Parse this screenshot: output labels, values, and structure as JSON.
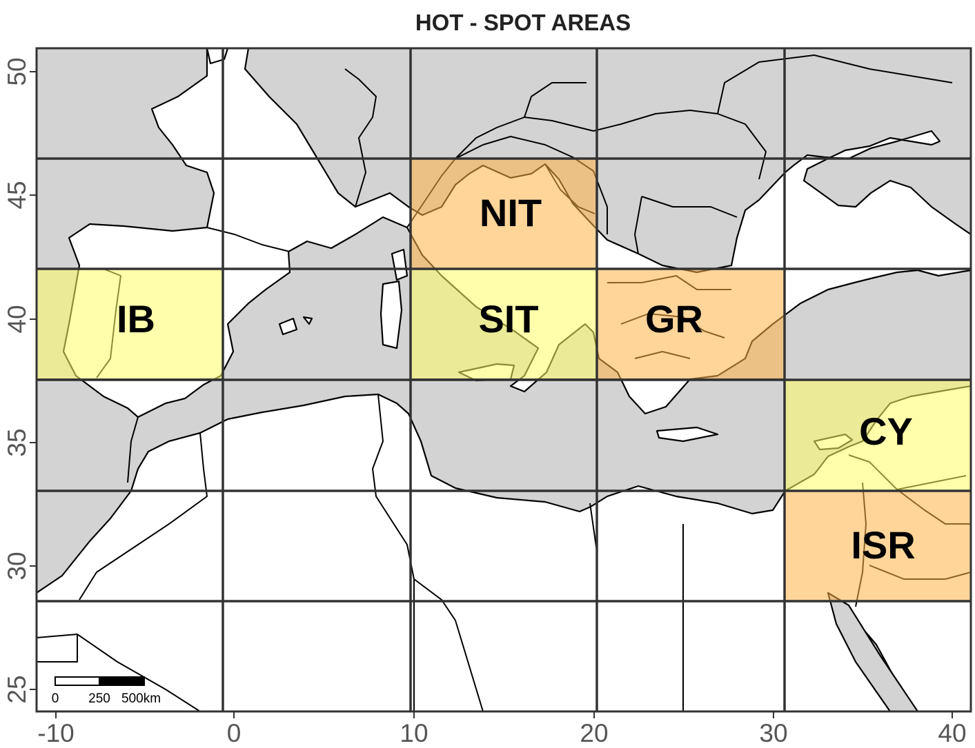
{
  "title": "HOT - SPOT AREAS",
  "axes": {
    "x_ticks": [
      "-10",
      "0",
      "10",
      "20",
      "30",
      "40"
    ],
    "y_ticks": [
      "50",
      "45",
      "40",
      "35",
      "30",
      "25"
    ]
  },
  "colors": {
    "sea": "#d3d3d3",
    "land": "#ffffff",
    "yellow_region": "#ffff66",
    "orange_region": "#ffb347",
    "grid": "#333333"
  },
  "regions": [
    {
      "code": "IB",
      "color": "yellow_region"
    },
    {
      "code": "NIT",
      "color": "orange_region"
    },
    {
      "code": "SIT",
      "color": "yellow_region"
    },
    {
      "code": "GR",
      "color": "orange_region"
    },
    {
      "code": "CY",
      "color": "yellow_region"
    },
    {
      "code": "ISR",
      "color": "orange_region"
    }
  ],
  "scale_bar": {
    "labels": [
      "0",
      "250",
      "500km"
    ]
  }
}
